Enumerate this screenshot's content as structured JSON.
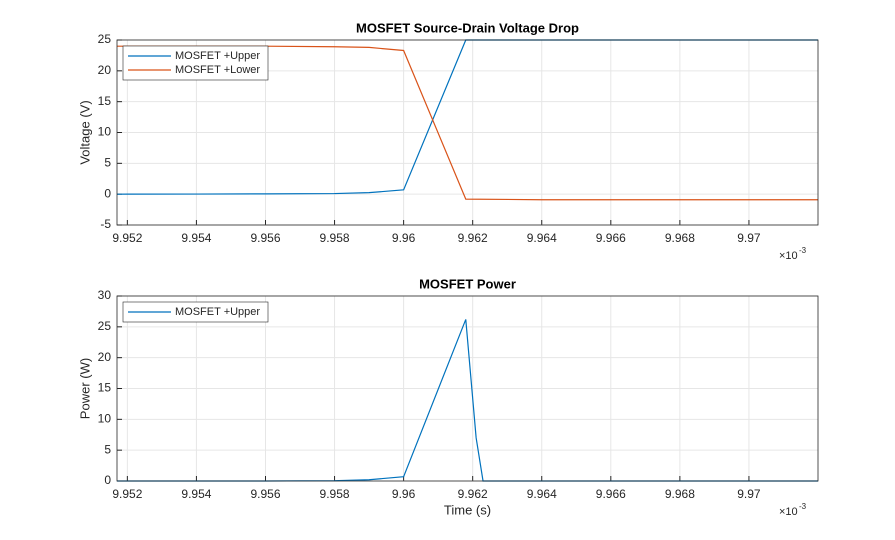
{
  "chart_data": [
    {
      "type": "line",
      "title": "MOSFET Source-Drain Voltage Drop",
      "y_label": "Voltage (V)",
      "x_multiplier": {
        "base": "×10",
        "exponent": "-3"
      },
      "x": [
        9.9517,
        9.954,
        9.956,
        9.958,
        9.959,
        9.96,
        9.9618,
        9.964,
        9.966,
        9.968,
        9.97,
        9.972
      ],
      "series": [
        {
          "name": "MOSFET +Upper",
          "color": "#0072BD",
          "values": [
            0,
            0.02,
            0.05,
            0.1,
            0.25,
            0.7,
            25,
            25,
            25,
            25,
            25,
            25
          ]
        },
        {
          "name": "MOSFET +Lower",
          "color": "#D95319",
          "values": [
            24,
            24,
            24,
            23.9,
            23.8,
            23.3,
            -0.8,
            -0.9,
            -0.9,
            -0.9,
            -0.9,
            -0.9
          ]
        }
      ],
      "xlim": [
        9.9517,
        9.972
      ],
      "xticks": [
        9.952,
        9.954,
        9.956,
        9.958,
        9.96,
        9.962,
        9.964,
        9.966,
        9.968,
        9.97
      ],
      "ylim": [
        -5,
        25
      ],
      "yticks": [
        -5,
        0,
        5,
        10,
        15,
        20,
        25
      ],
      "grid": true,
      "legend": "upper-left"
    },
    {
      "type": "line",
      "title": "MOSFET Power",
      "x_label": "Time (s)",
      "y_label": "Power (W)",
      "x_multiplier": {
        "base": "×10",
        "exponent": "-3"
      },
      "x": [
        9.9517,
        9.954,
        9.956,
        9.958,
        9.959,
        9.96,
        9.9618,
        9.9621,
        9.9623,
        9.964,
        9.968,
        9.972
      ],
      "series": [
        {
          "name": "MOSFET +Upper",
          "color": "#0072BD",
          "values": [
            0,
            0,
            0,
            0.05,
            0.2,
            0.7,
            26.2,
            7,
            0,
            0,
            0,
            0
          ]
        }
      ],
      "xlim": [
        9.9517,
        9.972
      ],
      "xticks": [
        9.952,
        9.954,
        9.956,
        9.958,
        9.96,
        9.962,
        9.964,
        9.966,
        9.968,
        9.97
      ],
      "ylim": [
        0,
        30
      ],
      "yticks": [
        0,
        5,
        10,
        15,
        20,
        25,
        30
      ],
      "grid": true,
      "legend": "upper-left"
    }
  ]
}
